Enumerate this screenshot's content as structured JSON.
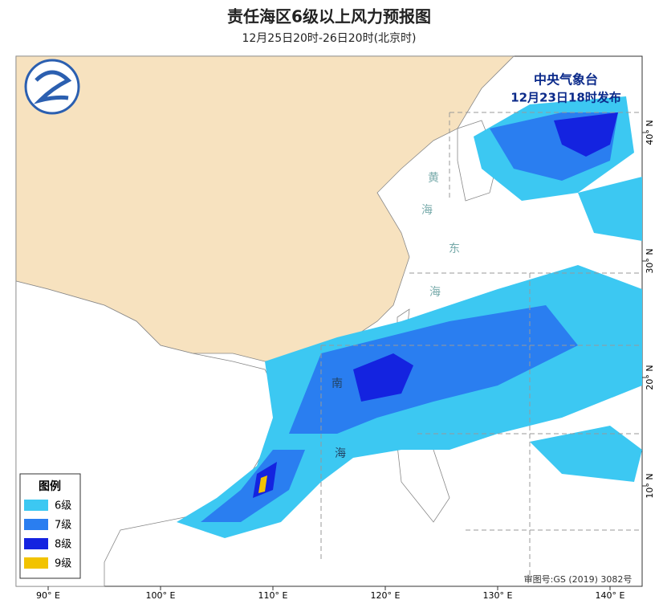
{
  "header": {
    "title": "责任海区6级以上风力预报图",
    "subtitle": "12月25日20时-26日20时(北京时)"
  },
  "issuer": {
    "name": "中央气象台",
    "time": "12月23日18时发布"
  },
  "legend": {
    "title": "图例",
    "items": [
      {
        "label": "6级",
        "color": "#3cc8f2"
      },
      {
        "label": "7级",
        "color": "#2a7ef0"
      },
      {
        "label": "8级",
        "color": "#1423e0"
      },
      {
        "label": "9级",
        "color": "#f2c300"
      }
    ]
  },
  "sea_labels": [
    "黄",
    "海",
    "东",
    "海",
    "南",
    "海"
  ],
  "axes": {
    "lon": [
      "90° E",
      "100° E",
      "110° E",
      "120° E",
      "130° E",
      "140° E"
    ],
    "lat": [
      "40° N",
      "30° N",
      "20° N",
      "10° N"
    ]
  },
  "approval": "审图号:GS (2019) 3082号"
}
